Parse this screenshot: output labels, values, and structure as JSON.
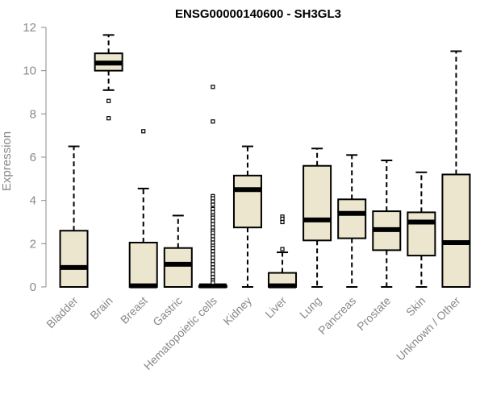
{
  "chart_data": {
    "type": "boxplot",
    "title": "ENSG00000140600 - SH3GL3",
    "xlabel": "",
    "ylabel": "Expression",
    "ylim": [
      0,
      12
    ],
    "yticks": [
      0,
      2,
      4,
      6,
      8,
      10,
      12
    ],
    "box_fill": "#ede6cf",
    "outline": "#000000",
    "categories": [
      "Bladder",
      "Brain",
      "Breast",
      "Gastric",
      "Hematopoietic cells",
      "Kidney",
      "Liver",
      "Lung",
      "Pancreas",
      "Prostate",
      "Skin",
      "Unknown / Other"
    ],
    "boxes": [
      {
        "name": "Bladder",
        "min": 0,
        "q1": 0,
        "median": 0.9,
        "q3": 2.6,
        "max": 6.5,
        "outliers": []
      },
      {
        "name": "Brain",
        "min": 9.1,
        "q1": 10.0,
        "median": 10.35,
        "q3": 10.8,
        "max": 11.65,
        "outliers": [
          8.6,
          7.8
        ]
      },
      {
        "name": "Breast",
        "min": 0,
        "q1": 0,
        "median": 0.05,
        "q3": 2.05,
        "max": 4.55,
        "outliers": [
          7.2
        ]
      },
      {
        "name": "Gastric",
        "min": 0,
        "q1": 0,
        "median": 1.05,
        "q3": 1.8,
        "max": 3.3,
        "outliers": []
      },
      {
        "name": "Hematopoietic cells",
        "min": 0,
        "q1": 0,
        "median": 0.05,
        "q3": 0.05,
        "max": 0.1,
        "outliers": [
          9.25,
          7.65,
          4.2,
          4.1,
          3.95,
          3.8,
          3.6,
          3.45,
          3.3,
          3.2,
          3.05,
          2.9,
          2.75,
          2.6,
          2.5,
          2.35,
          2.2,
          2.05,
          1.9,
          1.8,
          1.65,
          1.5,
          1.35,
          1.2,
          1.05,
          0.9,
          0.75,
          0.6,
          0.45,
          0.3,
          0.2
        ]
      },
      {
        "name": "Kidney",
        "min": 0,
        "q1": 2.75,
        "median": 4.5,
        "q3": 5.15,
        "max": 6.5,
        "outliers": []
      },
      {
        "name": "Liver",
        "min": 0,
        "q1": 0,
        "median": 0.05,
        "q3": 0.65,
        "max": 1.6,
        "outliers": [
          3.25,
          3.15,
          3.0,
          1.75
        ]
      },
      {
        "name": "Lung",
        "min": 0,
        "q1": 2.15,
        "median": 3.1,
        "q3": 5.6,
        "max": 6.4,
        "outliers": []
      },
      {
        "name": "Pancreas",
        "min": 0,
        "q1": 2.25,
        "median": 3.4,
        "q3": 4.05,
        "max": 6.1,
        "outliers": []
      },
      {
        "name": "Prostate",
        "min": 0,
        "q1": 1.7,
        "median": 2.65,
        "q3": 3.5,
        "max": 5.85,
        "outliers": []
      },
      {
        "name": "Skin",
        "min": 0,
        "q1": 1.45,
        "median": 3.0,
        "q3": 3.45,
        "max": 5.3,
        "outliers": []
      },
      {
        "name": "Unknown / Other",
        "min": 0,
        "q1": 0,
        "median": 2.05,
        "q3": 5.2,
        "max": 10.9,
        "outliers": []
      }
    ]
  }
}
